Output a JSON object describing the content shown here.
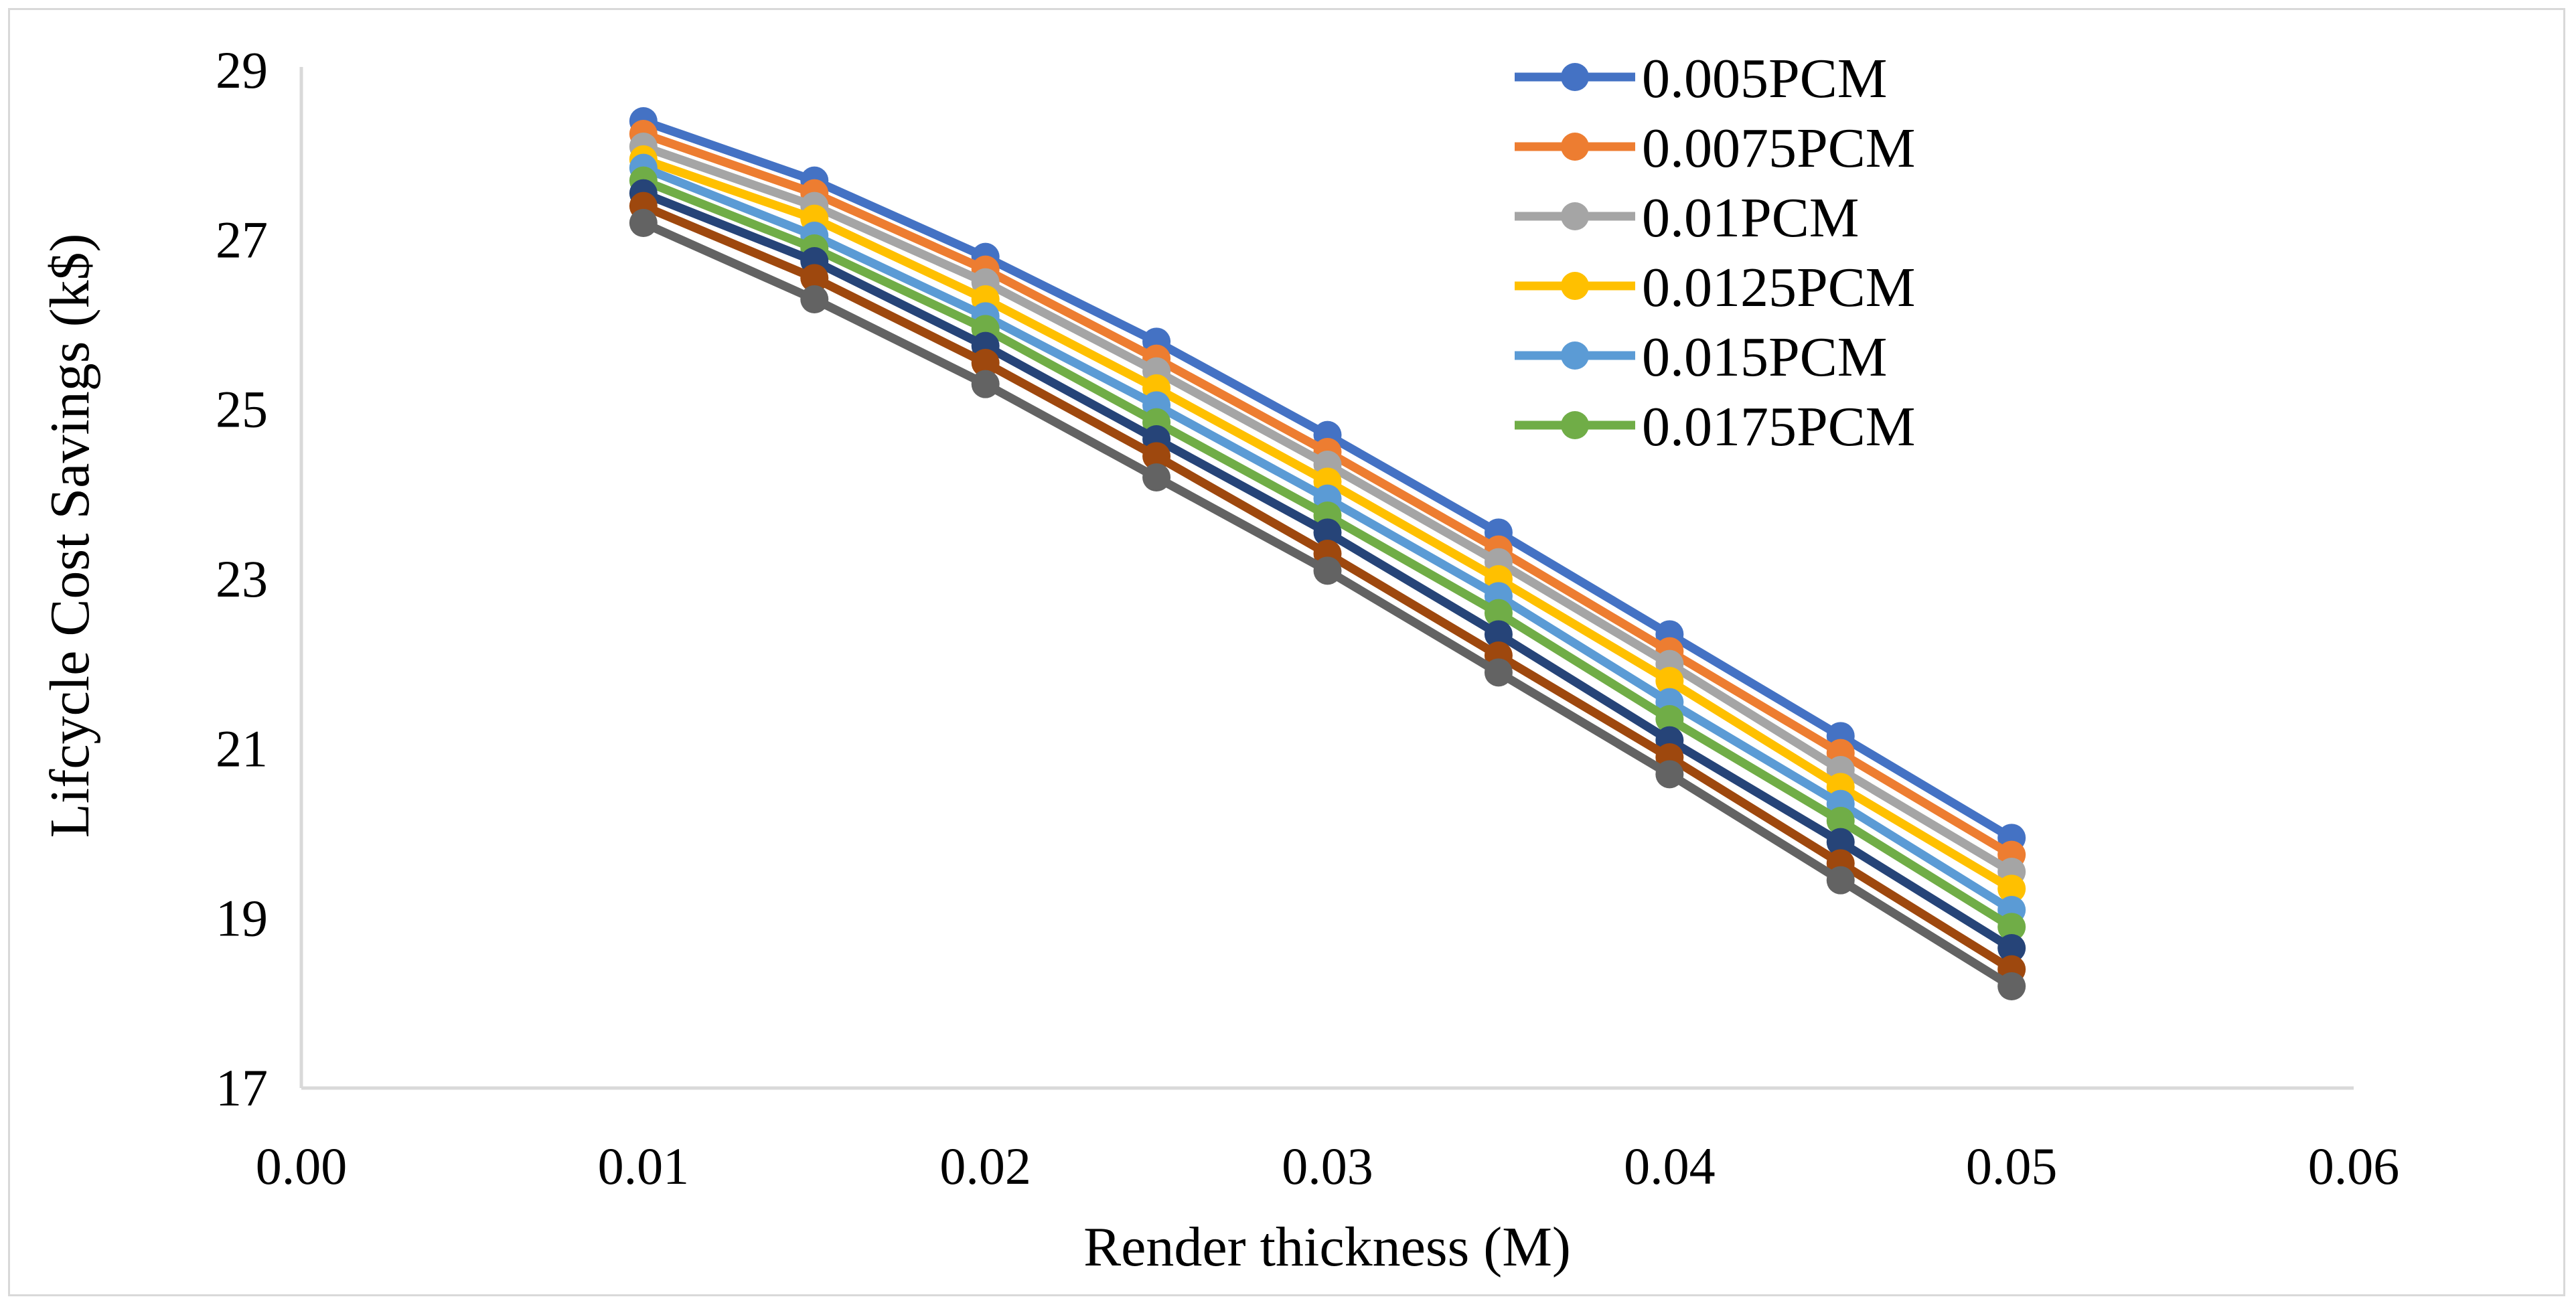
{
  "chart_data": {
    "type": "line",
    "title": "",
    "xlabel": "Render thickness (M)",
    "ylabel": "Lifcycle Cost Savings (k$)",
    "xlim": [
      0,
      0.06
    ],
    "ylim": [
      17,
      29
    ],
    "x_ticks": [
      "0.00",
      "0.01",
      "0.02",
      "0.03",
      "0.04",
      "0.05",
      "0.06"
    ],
    "y_ticks": [
      "17",
      "19",
      "21",
      "23",
      "25",
      "27",
      "29"
    ],
    "grid": false,
    "legend_position": "top-right",
    "x": [
      0.01,
      0.015,
      0.02,
      0.025,
      0.03,
      0.035,
      0.04,
      0.045,
      0.05
    ],
    "series": [
      {
        "name": "0.005PCM",
        "color": "#4472C4",
        "values": [
          28.4,
          27.7,
          26.8,
          25.8,
          24.7,
          23.55,
          22.35,
          21.15,
          19.95
        ]
      },
      {
        "name": "0.0075PCM",
        "color": "#ED7D31",
        "values": [
          28.25,
          27.55,
          26.65,
          25.6,
          24.5,
          23.35,
          22.15,
          20.95,
          19.75
        ]
      },
      {
        "name": "0.01PCM",
        "color": "#A5A5A5",
        "values": [
          28.1,
          27.4,
          26.5,
          25.45,
          24.35,
          23.2,
          22.0,
          20.75,
          19.55
        ]
      },
      {
        "name": "0.0125PCM",
        "color": "#FFC000",
        "values": [
          27.95,
          27.25,
          26.3,
          25.25,
          24.15,
          23.0,
          21.8,
          20.55,
          19.35
        ]
      },
      {
        "name": "0.015PCM",
        "color": "#5B9BD5",
        "values": [
          27.85,
          27.05,
          26.1,
          25.05,
          23.95,
          22.8,
          21.55,
          20.35,
          19.1
        ]
      },
      {
        "name": "0.0175PCM",
        "color": "#70AD47",
        "values": [
          27.7,
          26.9,
          25.95,
          24.85,
          23.75,
          22.6,
          21.35,
          20.15,
          18.9
        ]
      },
      {
        "name": "",
        "color": "#264478",
        "values": [
          27.55,
          26.75,
          25.75,
          24.65,
          23.55,
          22.35,
          21.1,
          19.9,
          18.65
        ]
      },
      {
        "name": "",
        "color": "#9E480E",
        "values": [
          27.4,
          26.55,
          25.55,
          24.45,
          23.3,
          22.1,
          20.9,
          19.65,
          18.4
        ]
      },
      {
        "name": "",
        "color": "#636363",
        "values": [
          27.2,
          26.3,
          25.3,
          24.2,
          23.1,
          21.9,
          20.7,
          19.45,
          18.2
        ]
      }
    ]
  }
}
